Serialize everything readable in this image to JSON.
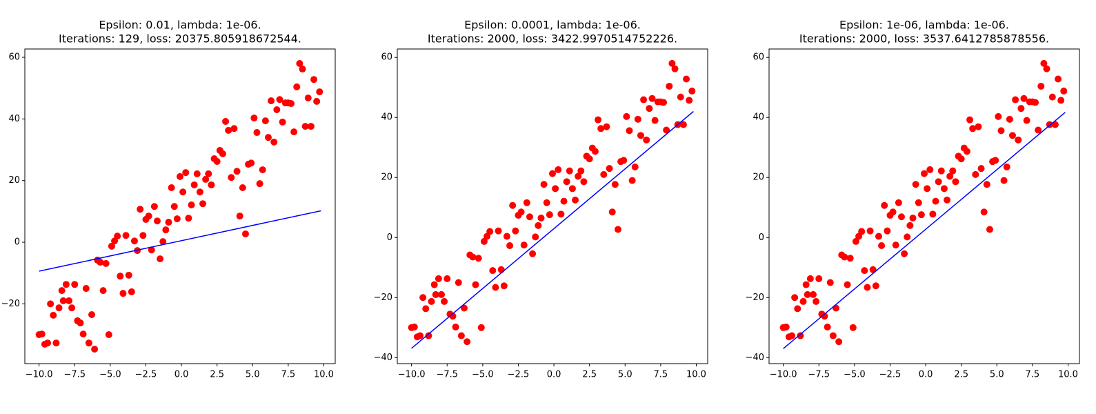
{
  "chart_data": [
    {
      "type": "scatter",
      "title": [
        "Epsilon: 0.01, lambda: 1e-06.",
        "Iterations: 129, loss: 20375.805918672544."
      ],
      "x": [
        -10,
        -9.8,
        -9.6,
        -9.4,
        -9.2,
        -9,
        -8.8,
        -8.6,
        -8.4,
        -8.3,
        -8.1,
        -7.9,
        -7.7,
        -7.5,
        -7.3,
        -7.1,
        -6.9,
        -6.7,
        -6.5,
        -6.3,
        -6.1,
        -5.9,
        -5.7,
        -5.5,
        -5.3,
        -5.1,
        -4.9,
        -4.7,
        -4.5,
        -4.3,
        -4.1,
        -3.9,
        -3.7,
        -3.5,
        -3.3,
        -3.1,
        -2.9,
        -2.7,
        -2.5,
        -2.3,
        -2.1,
        -1.9,
        -1.7,
        -1.5,
        -1.3,
        -1.1,
        -0.9,
        -0.7,
        -0.5,
        -0.3,
        -0.1,
        0.1,
        0.3,
        0.5,
        0.7,
        0.9,
        1.1,
        1.3,
        1.5,
        1.7,
        1.9,
        2.1,
        2.3,
        2.5,
        2.7,
        2.9,
        3.1,
        3.3,
        3.5,
        3.7,
        3.9,
        4.1,
        4.3,
        4.5,
        4.7,
        4.9,
        5.1,
        5.3,
        5.5,
        5.7,
        5.9,
        6.1,
        6.3,
        6.5,
        6.7,
        6.9,
        7.1,
        7.3,
        7.5,
        7.7,
        7.9,
        8.1,
        8.3,
        8.5,
        8.7,
        8.9,
        9.1,
        9.3,
        9.5,
        9.7
      ],
      "values": [
        -30,
        -29.8,
        -33.1,
        -32.7,
        -20,
        -23.7,
        -32.7,
        -21.3,
        -15.7,
        -19,
        -13.7,
        -19,
        -21.3,
        -13.7,
        -25.5,
        -26.2,
        -29.8,
        -15,
        -32.7,
        -23.5,
        -34.7,
        -5.8,
        -6.5,
        -15.7,
        -6.9,
        -30,
        -1.3,
        0.4,
        2,
        -11,
        -16.6,
        2.2,
        -10.7,
        -16.1,
        0.4,
        -2.7,
        10.7,
        2.2,
        7.4,
        8.5,
        -2.5,
        11.6,
        6.9,
        -5.4,
        0.2,
        4,
        6.5,
        17.7,
        11.6,
        7.6,
        21.3,
        16.3,
        22.6,
        7.8,
        12.1,
        18.6,
        22.2,
        16.3,
        12.5,
        20.4,
        22.2,
        18.6,
        27.1,
        26.2,
        29.8,
        28.7,
        39.2,
        36.3,
        21,
        36.9,
        23,
        8.5,
        17.7,
        2.7,
        25.3,
        25.7,
        40.3,
        35.6,
        19,
        23.5,
        39.4,
        34,
        45.9,
        32.5,
        43,
        46.3,
        39,
        45.2,
        45.2,
        45,
        35.8,
        50.4,
        58,
        56.2,
        37.6,
        46.8,
        37.6,
        52.8,
        45.7,
        48.8
      ],
      "color": "#ff0000",
      "fit": {
        "color": "#0000ff",
        "x": [
          -10,
          9.8
        ],
        "values": [
          -9.4,
          10.2
        ]
      },
      "xlim": [
        -11,
        10.8
      ],
      "xticks": [
        {
          "value": -10,
          "label": "−10.0"
        },
        {
          "value": -7.5,
          "label": "−7.5"
        },
        {
          "value": -5,
          "label": "−5.0"
        },
        {
          "value": -2.5,
          "label": "−2.5"
        },
        {
          "value": 0,
          "label": "0.0"
        },
        {
          "value": 2.5,
          "label": "2.5"
        },
        {
          "value": 5,
          "label": "5.0"
        },
        {
          "value": 7.5,
          "label": "7.5"
        },
        {
          "value": 10,
          "label": "10.0"
        }
      ],
      "ylim": [
        -39.4,
        62.7
      ],
      "yticks": [
        {
          "value": -20,
          "label": "−20"
        },
        0,
        20,
        40,
        60
      ]
    },
    {
      "type": "scatter",
      "title": [
        "Epsilon: 0.0001, lambda: 1e-06.",
        "Iterations: 2000, loss: 3422.9970514752226."
      ],
      "x": [
        -10,
        -9.8,
        -9.6,
        -9.4,
        -9.2,
        -9,
        -8.8,
        -8.6,
        -8.4,
        -8.3,
        -8.1,
        -7.9,
        -7.7,
        -7.5,
        -7.3,
        -7.1,
        -6.9,
        -6.7,
        -6.5,
        -6.3,
        -6.1,
        -5.9,
        -5.7,
        -5.5,
        -5.3,
        -5.1,
        -4.9,
        -4.7,
        -4.5,
        -4.3,
        -4.1,
        -3.9,
        -3.7,
        -3.5,
        -3.3,
        -3.1,
        -2.9,
        -2.7,
        -2.5,
        -2.3,
        -2.1,
        -1.9,
        -1.7,
        -1.5,
        -1.3,
        -1.1,
        -0.9,
        -0.7,
        -0.5,
        -0.3,
        -0.1,
        0.1,
        0.3,
        0.5,
        0.7,
        0.9,
        1.1,
        1.3,
        1.5,
        1.7,
        1.9,
        2.1,
        2.3,
        2.5,
        2.7,
        2.9,
        3.1,
        3.3,
        3.5,
        3.7,
        3.9,
        4.1,
        4.3,
        4.5,
        4.7,
        4.9,
        5.1,
        5.3,
        5.5,
        5.7,
        5.9,
        6.1,
        6.3,
        6.5,
        6.7,
        6.9,
        7.1,
        7.3,
        7.5,
        7.7,
        7.9,
        8.1,
        8.3,
        8.5,
        8.7,
        8.9,
        9.1,
        9.3,
        9.5,
        9.7
      ],
      "values": [
        -30,
        -29.8,
        -33.1,
        -32.7,
        -20,
        -23.7,
        -32.7,
        -21.3,
        -15.7,
        -19,
        -13.7,
        -19,
        -21.3,
        -13.7,
        -25.5,
        -26.2,
        -29.8,
        -15,
        -32.7,
        -23.5,
        -34.7,
        -5.8,
        -6.5,
        -15.7,
        -6.9,
        -30,
        -1.3,
        0.4,
        2,
        -11,
        -16.6,
        2.2,
        -10.7,
        -16.1,
        0.4,
        -2.7,
        10.7,
        2.2,
        7.4,
        8.5,
        -2.5,
        11.6,
        6.9,
        -5.4,
        0.2,
        4,
        6.5,
        17.7,
        11.6,
        7.6,
        21.3,
        16.3,
        22.6,
        7.8,
        12.1,
        18.6,
        22.2,
        16.3,
        12.5,
        20.4,
        22.2,
        18.6,
        27.1,
        26.2,
        29.8,
        28.7,
        39.2,
        36.3,
        21,
        36.9,
        23,
        8.5,
        17.7,
        2.7,
        25.3,
        25.7,
        40.3,
        35.6,
        19,
        23.5,
        39.4,
        34,
        45.9,
        32.5,
        43,
        46.3,
        39,
        45.2,
        45.2,
        45,
        35.8,
        50.4,
        58,
        56.2,
        37.6,
        46.8,
        37.6,
        52.8,
        45.7,
        48.8
      ],
      "color": "#ff0000",
      "fit": {
        "color": "#0000ff",
        "x": [
          -10,
          9.8
        ],
        "values": [
          -36.9,
          42
        ]
      },
      "xlim": [
        -11,
        10.8
      ],
      "xticks": [
        {
          "value": -10,
          "label": "−10.0"
        },
        {
          "value": -7.5,
          "label": "−7.5"
        },
        {
          "value": -5,
          "label": "−5.0"
        },
        {
          "value": -2.5,
          "label": "−2.5"
        },
        {
          "value": 0,
          "label": "0.0"
        },
        {
          "value": 2.5,
          "label": "2.5"
        },
        {
          "value": 5,
          "label": "5.0"
        },
        {
          "value": 7.5,
          "label": "7.5"
        },
        {
          "value": 10,
          "label": "10.0"
        }
      ],
      "ylim": [
        -42,
        62.8
      ],
      "yticks": [
        {
          "value": -40,
          "label": "−40"
        },
        {
          "value": -20,
          "label": "−20"
        },
        0,
        20,
        40,
        60
      ]
    },
    {
      "type": "scatter",
      "title": [
        "Epsilon: 1e-06, lambda: 1e-06.",
        "Iterations: 2000, loss: 3537.6412785878556."
      ],
      "x": [
        -10,
        -9.8,
        -9.6,
        -9.4,
        -9.2,
        -9,
        -8.8,
        -8.6,
        -8.4,
        -8.3,
        -8.1,
        -7.9,
        -7.7,
        -7.5,
        -7.3,
        -7.1,
        -6.9,
        -6.7,
        -6.5,
        -6.3,
        -6.1,
        -5.9,
        -5.7,
        -5.5,
        -5.3,
        -5.1,
        -4.9,
        -4.7,
        -4.5,
        -4.3,
        -4.1,
        -3.9,
        -3.7,
        -3.5,
        -3.3,
        -3.1,
        -2.9,
        -2.7,
        -2.5,
        -2.3,
        -2.1,
        -1.9,
        -1.7,
        -1.5,
        -1.3,
        -1.1,
        -0.9,
        -0.7,
        -0.5,
        -0.3,
        -0.1,
        0.1,
        0.3,
        0.5,
        0.7,
        0.9,
        1.1,
        1.3,
        1.5,
        1.7,
        1.9,
        2.1,
        2.3,
        2.5,
        2.7,
        2.9,
        3.1,
        3.3,
        3.5,
        3.7,
        3.9,
        4.1,
        4.3,
        4.5,
        4.7,
        4.9,
        5.1,
        5.3,
        5.5,
        5.7,
        5.9,
        6.1,
        6.3,
        6.5,
        6.7,
        6.9,
        7.1,
        7.3,
        7.5,
        7.7,
        7.9,
        8.1,
        8.3,
        8.5,
        8.7,
        8.9,
        9.1,
        9.3,
        9.5,
        9.7
      ],
      "values": [
        -30,
        -29.8,
        -33.1,
        -32.7,
        -20,
        -23.7,
        -32.7,
        -21.3,
        -15.7,
        -19,
        -13.7,
        -19,
        -21.3,
        -13.7,
        -25.5,
        -26.2,
        -29.8,
        -15,
        -32.7,
        -23.5,
        -34.7,
        -5.8,
        -6.5,
        -15.7,
        -6.9,
        -30,
        -1.3,
        0.4,
        2,
        -11,
        -16.6,
        2.2,
        -10.7,
        -16.1,
        0.4,
        -2.7,
        10.7,
        2.2,
        7.4,
        8.5,
        -2.5,
        11.6,
        6.9,
        -5.4,
        0.2,
        4,
        6.5,
        17.7,
        11.6,
        7.6,
        21.3,
        16.3,
        22.6,
        7.8,
        12.1,
        18.6,
        22.2,
        16.3,
        12.5,
        20.4,
        22.2,
        18.6,
        27.1,
        26.2,
        29.8,
        28.7,
        39.2,
        36.3,
        21,
        36.9,
        23,
        8.5,
        17.7,
        2.7,
        25.3,
        25.7,
        40.3,
        35.6,
        19,
        23.5,
        39.4,
        34,
        45.9,
        32.5,
        43,
        46.3,
        39,
        45.2,
        45.2,
        45,
        35.8,
        50.4,
        58,
        56.2,
        37.6,
        46.8,
        37.6,
        52.8,
        45.7,
        48.8
      ],
      "color": "#ff0000",
      "fit": {
        "color": "#0000ff",
        "x": [
          -10,
          9.8
        ],
        "values": [
          -37,
          41.7
        ]
      },
      "xlim": [
        -11,
        10.8
      ],
      "xticks": [
        {
          "value": -10,
          "label": "−10.0"
        },
        {
          "value": -7.5,
          "label": "−7.5"
        },
        {
          "value": -5,
          "label": "−5.0"
        },
        {
          "value": -2.5,
          "label": "−2.5"
        },
        {
          "value": 0,
          "label": "0.0"
        },
        {
          "value": 2.5,
          "label": "2.5"
        },
        {
          "value": 5,
          "label": "5.0"
        },
        {
          "value": 7.5,
          "label": "7.5"
        },
        {
          "value": 10,
          "label": "10.0"
        }
      ],
      "ylim": [
        -42,
        62.8
      ],
      "yticks": [
        {
          "value": -40,
          "label": "−40"
        },
        {
          "value": -20,
          "label": "−20"
        },
        0,
        20,
        40,
        60
      ]
    }
  ]
}
